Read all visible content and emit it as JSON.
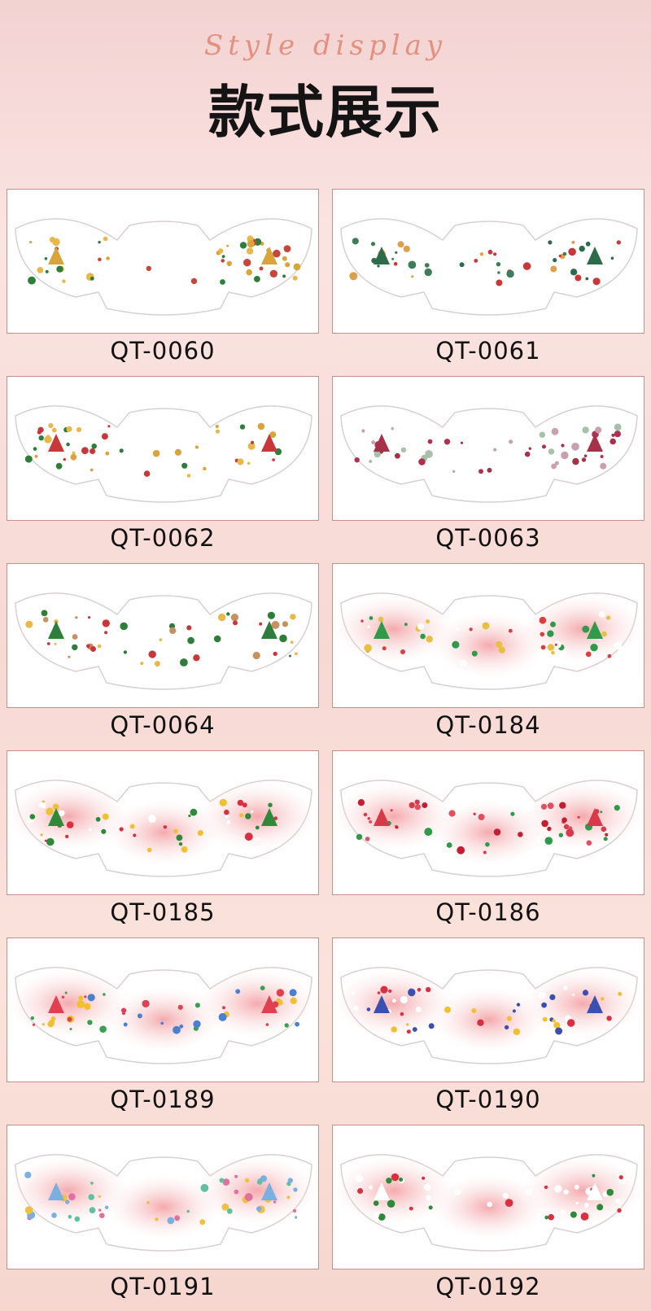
{
  "header": {
    "subtitle": "Style display",
    "title": "款式展示"
  },
  "items": [
    "QT-0060",
    "QT-0061",
    "QT-0062",
    "QT-0063",
    "QT-0064",
    "QT-0184",
    "QT-0185",
    "QT-0186",
    "QT-0189",
    "QT-0190",
    "QT-0191",
    "QT-0192"
  ]
}
